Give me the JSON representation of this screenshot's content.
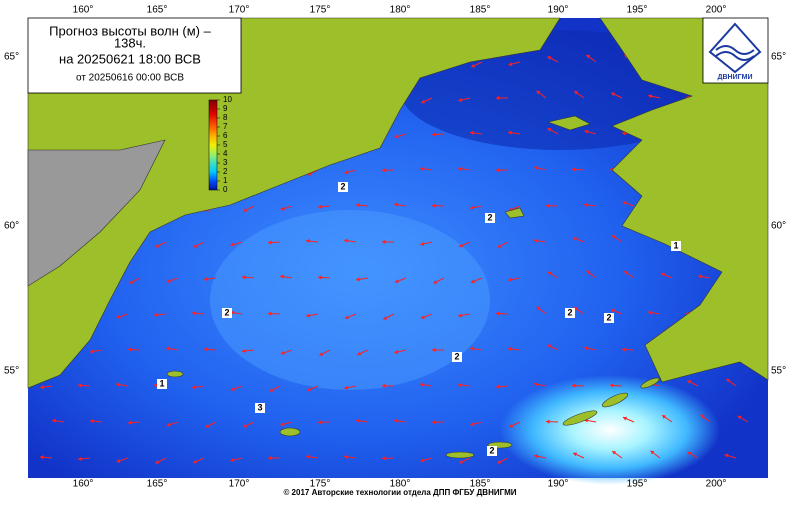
{
  "title": {
    "line1": "Прогноз высоты волн (м) –",
    "line2": "138ч.",
    "valid": "на 20250621 18:00 ВСВ",
    "issued": "от 20250616 00:00 ВСВ"
  },
  "logo": "ДВНИГМИ",
  "colorbar": {
    "ticks": [
      0,
      1,
      2,
      3,
      4,
      5,
      6,
      7,
      8,
      9,
      10
    ]
  },
  "lon_labels": [
    "160°",
    "165°",
    "170°",
    "175°",
    "180°",
    "185°",
    "190°",
    "195°",
    "200°"
  ],
  "lat_labels": [
    "65°",
    "60°",
    "55°"
  ],
  "contour_labels": [
    "2",
    "2",
    "1",
    "2",
    "2",
    "2",
    "2",
    "1",
    "3",
    "2"
  ],
  "footer": "© 2017 Авторские технологии отдела ДПП ФГБУ ДВНИГМИ"
}
